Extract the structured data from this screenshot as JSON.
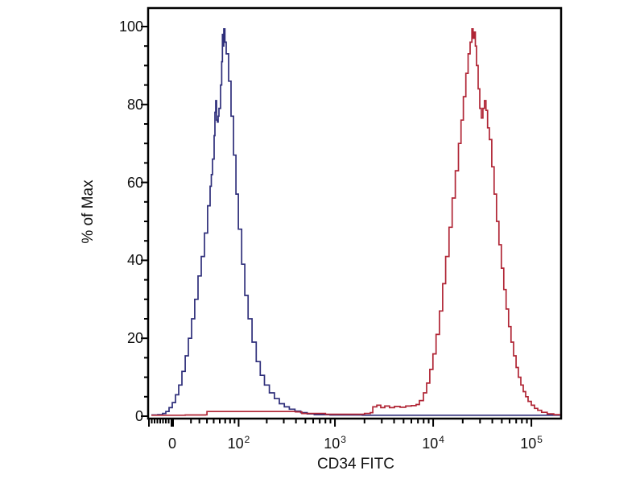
{
  "chart_data": {
    "type": "line",
    "subtype": "flow-cytometry-overlay-histogram",
    "title": "",
    "xlabel": "CD34 FITC",
    "ylabel": "% of Max",
    "x_scale": "biexponential-log",
    "x_ticks": [
      {
        "base": "0",
        "exp": "",
        "value": 0
      },
      {
        "base": "10",
        "exp": "2",
        "value": 100
      },
      {
        "base": "10",
        "exp": "3",
        "value": 1000
      },
      {
        "base": "10",
        "exp": "4",
        "value": 10000
      },
      {
        "base": "10",
        "exp": "5",
        "value": 100000
      }
    ],
    "y_ticks": [
      0,
      20,
      40,
      60,
      80,
      100
    ],
    "y_minor_step": 5,
    "ylim": [
      0,
      105
    ],
    "grid": false,
    "legend": "none",
    "frame_color": "#000000",
    "background_color": "#ffffff",
    "series": [
      {
        "name": "blue-curve",
        "color": "#2e2e7a",
        "peak": {
          "x": 70,
          "y_percent": 99
        },
        "points": [
          [
            -22.6,
            0.3
          ],
          [
            -15.3,
            0.4
          ],
          [
            -10.1,
            0.7
          ],
          [
            -6.7,
            1.2
          ],
          [
            -3.3,
            2.2
          ],
          [
            0,
            3.5
          ],
          [
            3.3,
            5.5
          ],
          [
            6.7,
            8
          ],
          [
            10.1,
            11.5
          ],
          [
            13.6,
            15.5
          ],
          [
            17.1,
            20
          ],
          [
            20.7,
            25
          ],
          [
            24.4,
            30
          ],
          [
            28.3,
            36
          ],
          [
            32.4,
            41
          ],
          [
            36.6,
            47
          ],
          [
            41.0,
            54
          ],
          [
            44.5,
            59
          ],
          [
            46.3,
            62
          ],
          [
            48.2,
            66
          ],
          [
            50.7,
            72
          ],
          [
            52.0,
            78
          ],
          [
            53.3,
            81
          ],
          [
            54.6,
            76
          ],
          [
            56.0,
            75.5
          ],
          [
            57.2,
            77
          ],
          [
            58.6,
            79
          ],
          [
            61.4,
            85
          ],
          [
            63.5,
            91
          ],
          [
            64.8,
            98
          ],
          [
            65.8,
            95
          ],
          [
            67.3,
            99.4
          ],
          [
            69.5,
            96
          ],
          [
            72.0,
            93
          ],
          [
            76.9,
            86
          ],
          [
            82.1,
            77
          ],
          [
            87.6,
            67
          ],
          [
            93.3,
            57
          ],
          [
            99.4,
            48
          ],
          [
            108,
            39
          ],
          [
            117,
            31
          ],
          [
            127,
            25
          ],
          [
            140,
            19
          ],
          [
            155,
            14
          ],
          [
            171,
            10.5
          ],
          [
            189,
            8
          ],
          [
            213,
            6
          ],
          [
            240,
            4.5
          ],
          [
            270,
            3.2
          ],
          [
            304,
            2.4
          ],
          [
            342,
            1.8
          ],
          [
            391,
            1.3
          ],
          [
            448,
            0.9
          ],
          [
            521,
            0.6
          ],
          [
            616,
            0.4
          ],
          [
            892,
            0.3
          ],
          [
            1900,
            0.25
          ],
          [
            7120,
            0.25
          ],
          [
            32000,
            0.25
          ],
          [
            200000,
            0.25
          ]
        ]
      },
      {
        "name": "red-curve",
        "color": "#b02535",
        "peak": {
          "x": 25000,
          "y_percent": 99
        },
        "points": [
          [
            -22.6,
            0.25
          ],
          [
            0,
            0.25
          ],
          [
            13.6,
            0.3
          ],
          [
            38,
            0.35
          ],
          [
            40,
            1.2
          ],
          [
            108,
            1.2
          ],
          [
            250,
            1.2
          ],
          [
            395,
            1.1
          ],
          [
            460,
            0.7
          ],
          [
            800,
            0.5
          ],
          [
            1300,
            0.5
          ],
          [
            2000,
            0.7
          ],
          [
            2290,
            0.9
          ],
          [
            2430,
            2.4
          ],
          [
            2670,
            2.8
          ],
          [
            2930,
            2.2
          ],
          [
            3220,
            2.6
          ],
          [
            3600,
            2.2
          ],
          [
            4040,
            2.5
          ],
          [
            4610,
            2.3
          ],
          [
            5260,
            2.6
          ],
          [
            6000,
            2.7
          ],
          [
            6710,
            3
          ],
          [
            7240,
            4
          ],
          [
            7960,
            6
          ],
          [
            8580,
            8.5
          ],
          [
            9240,
            12
          ],
          [
            9950,
            16
          ],
          [
            10700,
            21
          ],
          [
            11600,
            27
          ],
          [
            12500,
            34
          ],
          [
            13400,
            41
          ],
          [
            14500,
            48.5
          ],
          [
            15600,
            56
          ],
          [
            16800,
            63
          ],
          [
            18100,
            70
          ],
          [
            19200,
            76
          ],
          [
            20300,
            82
          ],
          [
            21500,
            88
          ],
          [
            22700,
            93
          ],
          [
            23800,
            96
          ],
          [
            24800,
            99.4
          ],
          [
            25500,
            97
          ],
          [
            26100,
            98.6
          ],
          [
            26900,
            95
          ],
          [
            27600,
            90
          ],
          [
            28700,
            84
          ],
          [
            29800,
            79
          ],
          [
            30900,
            76.5
          ],
          [
            32100,
            79
          ],
          [
            33300,
            81
          ],
          [
            34500,
            78.5
          ],
          [
            35800,
            74
          ],
          [
            37300,
            71
          ],
          [
            39500,
            64
          ],
          [
            41700,
            57
          ],
          [
            44200,
            50
          ],
          [
            46700,
            44
          ],
          [
            49500,
            38
          ],
          [
            52300,
            32.5
          ],
          [
            55300,
            27.5
          ],
          [
            58600,
            23
          ],
          [
            62000,
            19
          ],
          [
            65900,
            15.5
          ],
          [
            69800,
            12.5
          ],
          [
            73700,
            10
          ],
          [
            78100,
            8
          ],
          [
            82600,
            6.3
          ],
          [
            87400,
            5
          ],
          [
            92500,
            3.8
          ],
          [
            99700,
            2.8
          ],
          [
            107600,
            2
          ],
          [
            116000,
            1.5
          ],
          [
            127000,
            1
          ],
          [
            145000,
            0.6
          ],
          [
            169000,
            0.4
          ],
          [
            200000,
            0.3
          ]
        ]
      }
    ]
  }
}
